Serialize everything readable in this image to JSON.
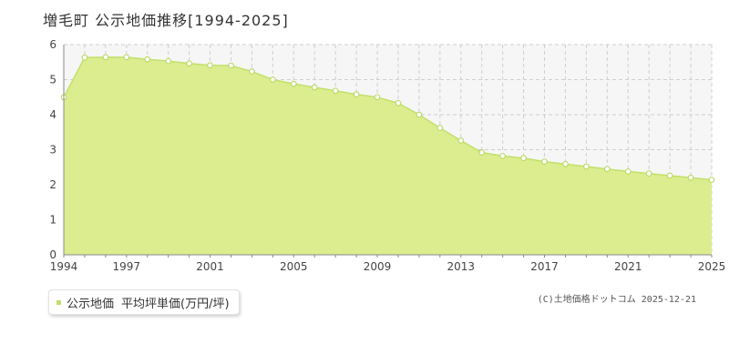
{
  "header": {
    "title": "増毛町 公示地価推移[1994-2025]"
  },
  "legend": {
    "series_label": "公示地価",
    "unit_label": "平均坪単価(万円/坪)"
  },
  "credit": "(C)土地価格ドットコム 2025-12-21",
  "colors": {
    "area_fill": "#dbed8f",
    "line": "#c2e06a",
    "marker_fill": "#ffffff",
    "marker_stroke": "#b6d65a",
    "grid": "#cfcfcf",
    "empty_region": "#f6f6f6",
    "axis": "#888888"
  },
  "chart_data": {
    "type": "area",
    "x": [
      1994,
      1995,
      1996,
      1997,
      1998,
      1999,
      2000,
      2001,
      2002,
      2003,
      2004,
      2005,
      2006,
      2007,
      2008,
      2009,
      2010,
      2011,
      2012,
      2013,
      2014,
      2015,
      2016,
      2017,
      2018,
      2019,
      2020,
      2021,
      2022,
      2023,
      2024,
      2025
    ],
    "series": [
      {
        "name": "公示地価",
        "values": [
          4.5,
          5.63,
          5.64,
          5.64,
          5.58,
          5.53,
          5.46,
          5.41,
          5.4,
          5.23,
          5.0,
          4.88,
          4.78,
          4.68,
          4.58,
          4.5,
          4.33,
          4.0,
          3.62,
          3.26,
          2.92,
          2.82,
          2.76,
          2.66,
          2.59,
          2.52,
          2.45,
          2.38,
          2.32,
          2.26,
          2.2,
          2.14
        ]
      }
    ],
    "x_ticks": [
      "1994",
      "1997",
      "2001",
      "2005",
      "2009",
      "2013",
      "2017",
      "2021",
      "2025"
    ],
    "y_ticks": [
      "0",
      "1",
      "2",
      "3",
      "4",
      "5",
      "6"
    ],
    "ylim": [
      0,
      6
    ],
    "xlim": [
      1994,
      2025
    ],
    "grid": true,
    "legend_position": "bottom-left"
  }
}
